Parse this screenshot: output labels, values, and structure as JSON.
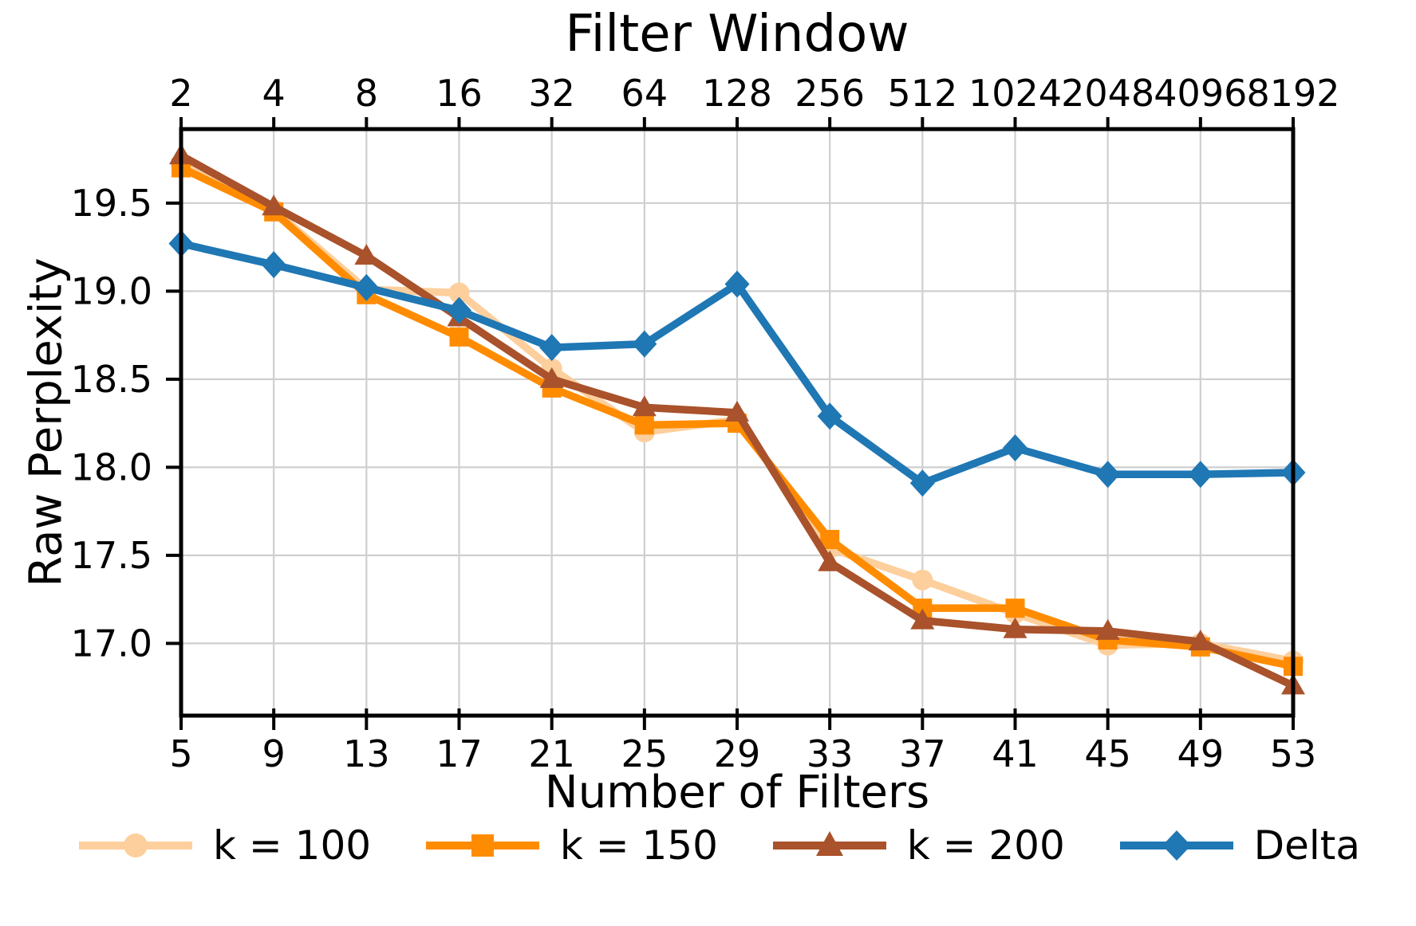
{
  "chart_data": {
    "type": "line",
    "title": "Filter Window",
    "xlabel": "Number of Filters",
    "ylabel": "Raw Perplexity",
    "x": [
      5,
      9,
      13,
      17,
      21,
      25,
      29,
      33,
      37,
      41,
      45,
      49,
      53
    ],
    "top_axis_labels": [
      "2",
      "4",
      "8",
      "16",
      "32",
      "64",
      "128",
      "256",
      "512",
      "1024",
      "2048",
      "4096",
      "8192"
    ],
    "x_tick_labels": [
      "5",
      "9",
      "13",
      "17",
      "21",
      "25",
      "29",
      "33",
      "37",
      "41",
      "45",
      "49",
      "53"
    ],
    "y_ticks": [
      17.0,
      17.5,
      18.0,
      18.5,
      19.0,
      19.5
    ],
    "xlim": [
      5,
      53
    ],
    "ylim": [
      16.59,
      19.92
    ],
    "grid": true,
    "legend_position": "below",
    "series": [
      {
        "name": "k = 100",
        "color": "#fdcf9d",
        "marker": "circle",
        "values": [
          19.72,
          19.46,
          19.01,
          18.99,
          18.56,
          18.2,
          18.27,
          17.54,
          17.36,
          17.17,
          16.99,
          17.0,
          16.9
        ]
      },
      {
        "name": "k = 150",
        "color": "#ff8c00",
        "marker": "square",
        "values": [
          19.7,
          19.45,
          18.98,
          18.74,
          18.45,
          18.24,
          18.25,
          17.59,
          17.2,
          17.2,
          17.02,
          16.98,
          16.87
        ]
      },
      {
        "name": "k = 200",
        "color": "#a9522b",
        "marker": "triangle",
        "values": [
          19.77,
          19.48,
          19.2,
          18.85,
          18.5,
          18.34,
          18.31,
          17.46,
          17.13,
          17.08,
          17.07,
          17.01,
          16.76
        ]
      },
      {
        "name": "Delta",
        "color": "#1f77b4",
        "marker": "diamond",
        "values": [
          19.27,
          19.15,
          19.02,
          18.89,
          18.68,
          18.7,
          19.04,
          18.29,
          17.91,
          18.11,
          17.96,
          17.96,
          17.97
        ]
      }
    ],
    "style": {
      "grid_color": "#cfcfcf",
      "axis_color": "#000000",
      "background": "#ffffff"
    }
  }
}
